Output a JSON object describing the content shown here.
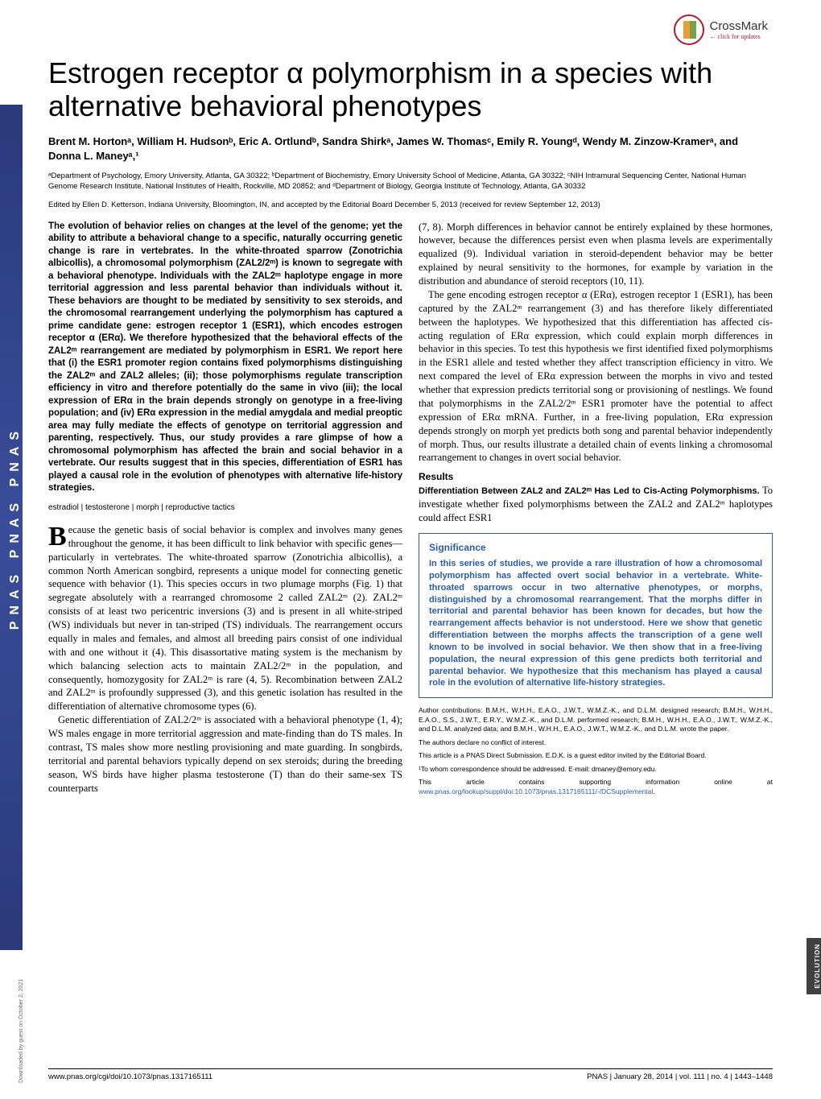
{
  "crossmark": {
    "label": "CrossMark",
    "sub": "← click for updates"
  },
  "pnas_stripe": "PNAS   PNAS   PNAS",
  "title": "Estrogen receptor α polymorphism in a species with alternative behavioral phenotypes",
  "authors": "Brent M. Hortonᵃ, William H. Hudsonᵇ, Eric A. Ortlundᵇ, Sandra Shirkᵃ, James W. Thomasᶜ, Emily R. Youngᵈ, Wendy M. Zinzow-Kramerᵃ, and Donna L. Maneyᵃ,¹",
  "affiliations": "ᵃDepartment of Psychology, Emory University, Atlanta, GA 30322; ᵇDepartment of Biochemistry, Emory University School of Medicine, Atlanta, GA 30322; ᶜNIH Intramural Sequencing Center, National Human Genome Research Institute, National Institutes of Health, Rockville, MD 20852; and ᵈDepartment of Biology, Georgia Institute of Technology, Atlanta, GA 30332",
  "edited_by": "Edited by Ellen D. Ketterson, Indiana University, Bloomington, IN, and accepted by the Editorial Board December 5, 2013 (received for review September 12, 2013)",
  "abstract": "The evolution of behavior relies on changes at the level of the genome; yet the ability to attribute a behavioral change to a specific, naturally occurring genetic change is rare in vertebrates. In the white-throated sparrow (Zonotrichia albicollis), a chromosomal polymorphism (ZAL2/2ᵐ) is known to segregate with a behavioral phenotype. Individuals with the ZAL2ᵐ haplotype engage in more territorial aggression and less parental behavior than individuals without it. These behaviors are thought to be mediated by sensitivity to sex steroids, and the chromosomal rearrangement underlying the polymorphism has captured a prime candidate gene: estrogen receptor 1 (ESR1), which encodes estrogen receptor α (ERα). We therefore hypothesized that the behavioral effects of the ZAL2ᵐ rearrangement are mediated by polymorphism in ESR1. We report here that (i) the ESR1 promoter region contains fixed polymorphisms distinguishing the ZAL2ᵐ and ZAL2 alleles; (ii); those polymorphisms regulate transcription efficiency in vitro and therefore potentially do the same in vivo (iii); the local expression of ERα in the brain depends strongly on genotype in a free-living population; and (iv) ERα expression in the medial amygdala and medial preoptic area may fully mediate the effects of genotype on territorial aggression and parenting, respectively. Thus, our study provides a rare glimpse of how a chromosomal polymorphism has affected the brain and social behavior in a vertebrate. Our results suggest that in this species, differentiation of ESR1 has played a causal role in the evolution of phenotypes with alternative life-history strategies.",
  "keywords": "estradiol | testosterone | morph | reproductive tactics",
  "intro_first_letter": "B",
  "intro_para1": "ecause the genetic basis of social behavior is complex and involves many genes throughout the genome, it has been difficult to link behavior with specific genes—particularly in vertebrates. The white-throated sparrow (Zonotrichia albicollis), a common North American songbird, represents a unique model for connecting genetic sequence with behavior (1). This species occurs in two plumage morphs (Fig. 1) that segregate absolutely with a rearranged chromosome 2 called ZAL2ᵐ (2). ZAL2ᵐ consists of at least two pericentric inversions (3) and is present in all white-striped (WS) individuals but never in tan-striped (TS) individuals. The rearrangement occurs equally in males and females, and almost all breeding pairs consist of one individual with and one without it (4). This disassortative mating system is the mechanism by which balancing selection acts to maintain ZAL2/2ᵐ in the population, and consequently, homozygosity for ZAL2ᵐ is rare (4, 5). Recombination between ZAL2 and ZAL2ᵐ is profoundly suppressed (3), and this genetic isolation has resulted in the differentiation of alternative chromosome types (6).",
  "intro_para2": "Genetic differentiation of ZAL2/2ᵐ is associated with a behavioral phenotype (1, 4); WS males engage in more territorial aggression and mate-finding than do TS males. In contrast, TS males show more nestling provisioning and mate guarding. In songbirds, territorial and parental behaviors typically depend on sex steroids; during the breeding season, WS birds have higher plasma testosterone (T) than do their same-sex TS counterparts",
  "col2_para1": "(7, 8). Morph differences in behavior cannot be entirely explained by these hormones, however, because the differences persist even when plasma levels are experimentally equalized (9). Individual variation in steroid-dependent behavior may be better explained by neural sensitivity to the hormones, for example by variation in the distribution and abundance of steroid receptors (10, 11).",
  "col2_para2": "The gene encoding estrogen receptor α (ERα), estrogen receptor 1 (ESR1), has been captured by the ZAL2ᵐ rearrangement (3) and has therefore likely differentiated between the haplotypes. We hypothesized that this differentiation has affected cis-acting regulation of ERα expression, which could explain morph differences in behavior in this species. To test this hypothesis we first identified fixed polymorphisms in the ESR1 allele and tested whether they affect transcription efficiency in vitro. We next compared the level of ERα expression between the morphs in vivo and tested whether that expression predicts territorial song or provisioning of nestlings. We found that polymorphisms in the ZAL2/2ᵐ ESR1 promoter have the potential to affect expression of ERα mRNA. Further, in a free-living population, ERα expression depends strongly on morph yet predicts both song and parental behavior independently of morph. Thus, our results illustrate a detailed chain of events linking a chromosomal rearrangement to changes in overt social behavior.",
  "results_heading": "Results",
  "results_sub": "Differentiation Between ZAL2 and ZAL2ᵐ Has Led to Cis-Acting Polymorphisms.",
  "results_text": " To investigate whether fixed polymorphisms between the ZAL2 and ZAL2ᵐ haplotypes could affect ESR1",
  "significance": {
    "title": "Significance",
    "body": "In this series of studies, we provide a rare illustration of how a chromosomal polymorphism has affected overt social behavior in a vertebrate. White-throated sparrows occur in two alternative phenotypes, or morphs, distinguished by a chromosomal rearrangement. That the morphs differ in territorial and parental behavior has been known for decades, but how the rearrangement affects behavior is not understood. Here we show that genetic differentiation between the morphs affects the transcription of a gene well known to be involved in social behavior. We then show that in a free-living population, the neural expression of this gene predicts both territorial and parental behavior. We hypothesize that this mechanism has played a causal role in the evolution of alternative life-history strategies."
  },
  "footnotes": {
    "contributions": "Author contributions: B.M.H., W.H.H., E.A.O., J.W.T., W.M.Z.-K., and D.L.M. designed research; B.M.H., W.H.H., E.A.O., S.S., J.W.T., E.R.Y., W.M.Z.-K., and D.L.M. performed research; B.M.H., W.H.H., E.A.O., J.W.T., W.M.Z.-K., and D.L.M. analyzed data; and B.M.H., W.H.H., E.A.O., J.W.T., W.M.Z.-K., and D.L.M. wrote the paper.",
    "conflict": "The authors declare no conflict of interest.",
    "direct": "This article is a PNAS Direct Submission. E.D.K. is a guest editor invited by the Editorial Board.",
    "correspondence": "¹To whom correspondence should be addressed. E-mail: dmaney@emory.edu.",
    "supporting": "This article contains supporting information online at ",
    "supporting_link": "www.pnas.org/lookup/suppl/doi:10.1073/pnas.1317165111/-/DCSupplemental"
  },
  "footer": {
    "left": "www.pnas.org/cgi/doi/10.1073/pnas.1317165111",
    "right": "PNAS | January 28, 2014 | vol. 111 | no. 4 | 1443–1448"
  },
  "evolution_tab": "EVOLUTION",
  "download_note": "Downloaded by guest on October 2, 2021"
}
